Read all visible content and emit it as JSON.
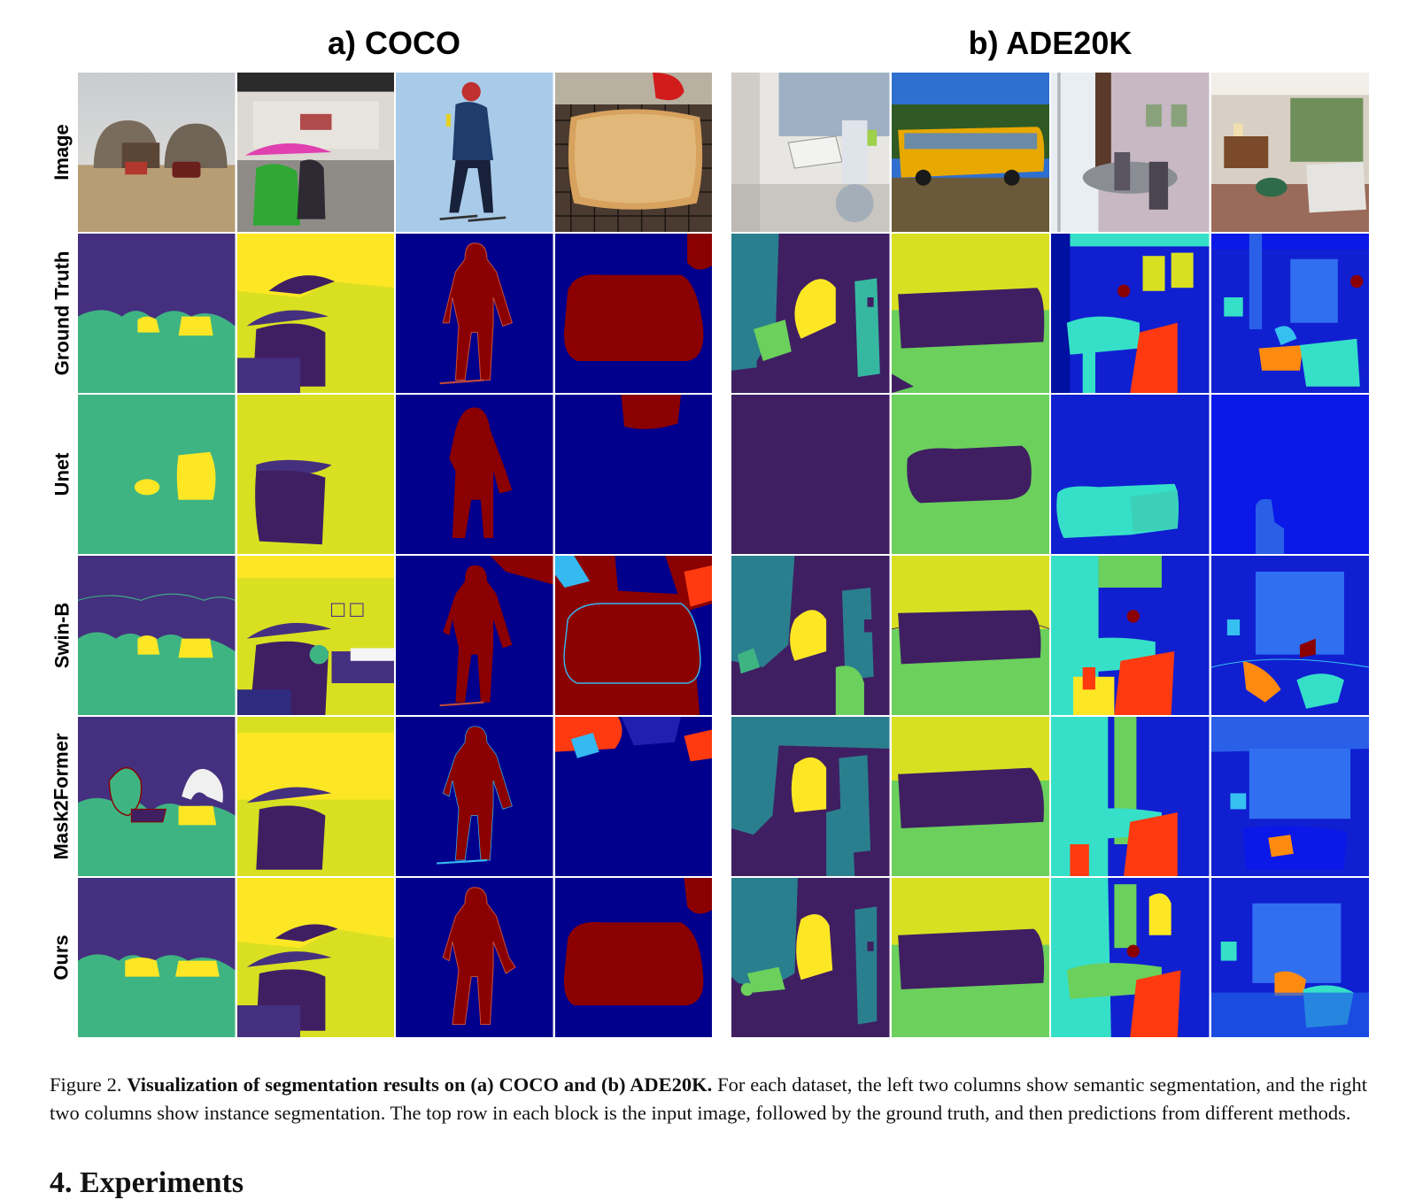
{
  "panels": {
    "a_title": "a) COCO",
    "b_title": "b) ADE20K"
  },
  "row_labels": [
    "Image",
    "Ground Truth",
    "Unet",
    "Swin-B",
    "Mask2Former",
    "Ours"
  ],
  "caption": {
    "figure_label": "Figure 2.",
    "bold_text": "Visualization of segmentation results on (a) COCO and (b) ADE20K.",
    "body_text": "For each dataset, the left two columns show semantic segmentation, and the right two columns show instance segmentation. The top row in each block is the input image, followed by the ground truth, and then predictions from different methods."
  },
  "section_heading": "4. Experiments",
  "colors": {
    "dark_purple": "#3f1f62",
    "purple": "#45307f",
    "green": "#3fb483",
    "yellow": "#fde725",
    "yellow_green": "#d9e021",
    "navy": "#00008c",
    "maroon": "#8b0000",
    "blue": "#0a18e8",
    "cyan": "#36e0c8",
    "orange": "#ff3a10",
    "lime": "#6bd05c",
    "teal": "#2a7f8e"
  }
}
